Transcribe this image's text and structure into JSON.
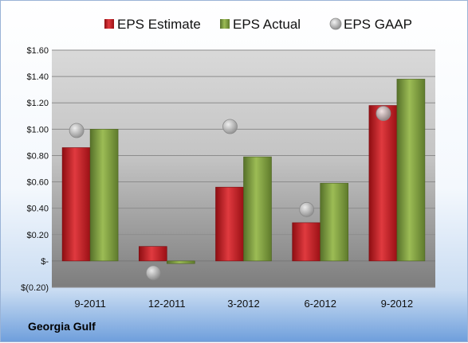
{
  "chart_data": {
    "type": "bar",
    "categories": [
      "9-2011",
      "12-2011",
      "3-2012",
      "6-2012",
      "9-2012"
    ],
    "series": [
      {
        "name": "EPS Estimate",
        "kind": "bar",
        "color": "#c8161c",
        "values": [
          0.86,
          0.11,
          0.56,
          0.29,
          1.18
        ]
      },
      {
        "name": "EPS Actual",
        "kind": "bar",
        "color": "#7a9a34",
        "values": [
          1.0,
          -0.02,
          0.79,
          0.59,
          1.38
        ]
      },
      {
        "name": "EPS GAAP",
        "kind": "marker",
        "color": "#a9a9a9",
        "values": [
          0.99,
          -0.09,
          1.02,
          0.39,
          1.12
        ]
      }
    ],
    "y_ticks": [
      "$1.60",
      "$1.40",
      "$1.20",
      "$1.00",
      "$0.80",
      "$0.60",
      "$0.40",
      "$0.20",
      "$-",
      "$(0.20)"
    ],
    "y_tick_values": [
      1.6,
      1.4,
      1.2,
      1.0,
      0.8,
      0.6,
      0.4,
      0.2,
      0,
      -0.2
    ],
    "ylim": [
      -0.2,
      1.6
    ],
    "grid": true,
    "legend_position": "top"
  },
  "company_label": "Georgia Gulf"
}
